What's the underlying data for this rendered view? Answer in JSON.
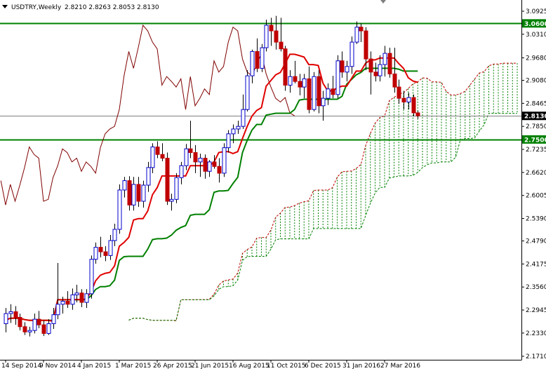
{
  "header": {
    "symbol": "USDTRY,Weekly",
    "ohlc": "2.8210 2.8263 2.8053 2.8130"
  },
  "colors": {
    "bull_candle": "#0000cc",
    "bear_candle": "#c00000",
    "tenkan": "#e00000",
    "kijun": "#008000",
    "chikou": "#800000",
    "span_a": "#c00000",
    "span_b": "#008000",
    "kumo_fill": "#008000",
    "level_line": "#008000",
    "current_price_line": "#808080",
    "badge_bg": "#008000",
    "current_badge_bg": "#000000"
  },
  "chart_data": {
    "type": "candlestick",
    "title": "USDTRY,Weekly",
    "indicators": [
      "Ichimoku Kinko Hyo"
    ],
    "ylim": [
      2.171,
      3.0925
    ],
    "y_ticks": [
      "3.0925",
      "3.0600",
      "3.0310",
      "2.9680",
      "2.9080",
      "2.8465",
      "2.8130",
      "2.7850",
      "2.7235",
      "2.6620",
      "2.6005",
      "2.5390",
      "2.4790",
      "2.4175",
      "2.3560",
      "2.2945",
      "2.2330",
      "2.1710"
    ],
    "x_ticks": [
      {
        "i": 0,
        "label": "14 Sep 2014"
      },
      {
        "i": 8,
        "label": "9 Nov 2014"
      },
      {
        "i": 16,
        "label": "4 Jan 2015"
      },
      {
        "i": 24,
        "label": "1 Mar 2015"
      },
      {
        "i": 32,
        "label": "26 Apr 2015"
      },
      {
        "i": 40,
        "label": "21 Jun 2015"
      },
      {
        "i": 48,
        "label": "16 Aug 2015"
      },
      {
        "i": 56,
        "label": "11 Oct 2015"
      },
      {
        "i": 64,
        "label": "6 Dec 2015"
      },
      {
        "i": 72,
        "label": "31 Jan 2016"
      },
      {
        "i": 80,
        "label": "27 Mar 2016"
      }
    ],
    "horizontal_levels": [
      {
        "value": 3.06,
        "label": "3.0600"
      },
      {
        "value": 2.75,
        "label": "2.7500"
      }
    ],
    "current_price": {
      "value": 2.813,
      "label": "2.8130"
    },
    "candles": [
      {
        "o": 2.258,
        "h": 2.3,
        "l": 2.235,
        "c": 2.285
      },
      {
        "o": 2.285,
        "h": 2.31,
        "l": 2.26,
        "c": 2.29
      },
      {
        "o": 2.29,
        "h": 2.305,
        "l": 2.255,
        "c": 2.275
      },
      {
        "o": 2.275,
        "h": 2.285,
        "l": 2.24,
        "c": 2.25
      },
      {
        "o": 2.25,
        "h": 2.262,
        "l": 2.228,
        "c": 2.236
      },
      {
        "o": 2.236,
        "h": 2.25,
        "l": 2.224,
        "c": 2.24
      },
      {
        "o": 2.24,
        "h": 2.285,
        "l": 2.232,
        "c": 2.27
      },
      {
        "o": 2.27,
        "h": 2.292,
        "l": 2.246,
        "c": 2.255
      },
      {
        "o": 2.255,
        "h": 2.266,
        "l": 2.225,
        "c": 2.232
      },
      {
        "o": 2.232,
        "h": 2.27,
        "l": 2.228,
        "c": 2.258
      },
      {
        "o": 2.258,
        "h": 2.3,
        "l": 2.244,
        "c": 2.282
      },
      {
        "o": 2.282,
        "h": 2.42,
        "l": 2.27,
        "c": 2.31
      },
      {
        "o": 2.31,
        "h": 2.33,
        "l": 2.285,
        "c": 2.318
      },
      {
        "o": 2.318,
        "h": 2.345,
        "l": 2.3,
        "c": 2.31
      },
      {
        "o": 2.31,
        "h": 2.352,
        "l": 2.295,
        "c": 2.335
      },
      {
        "o": 2.335,
        "h": 2.362,
        "l": 2.315,
        "c": 2.34
      },
      {
        "o": 2.34,
        "h": 2.35,
        "l": 2.302,
        "c": 2.315
      },
      {
        "o": 2.315,
        "h": 2.35,
        "l": 2.3,
        "c": 2.338
      },
      {
        "o": 2.338,
        "h": 2.44,
        "l": 2.325,
        "c": 2.43
      },
      {
        "o": 2.43,
        "h": 2.475,
        "l": 2.418,
        "c": 2.462
      },
      {
        "o": 2.462,
        "h": 2.49,
        "l": 2.435,
        "c": 2.45
      },
      {
        "o": 2.45,
        "h": 2.465,
        "l": 2.425,
        "c": 2.44
      },
      {
        "o": 2.44,
        "h": 2.495,
        "l": 2.428,
        "c": 2.48
      },
      {
        "o": 2.48,
        "h": 2.525,
        "l": 2.465,
        "c": 2.51
      },
      {
        "o": 2.51,
        "h": 2.63,
        "l": 2.498,
        "c": 2.615
      },
      {
        "o": 2.615,
        "h": 2.65,
        "l": 2.595,
        "c": 2.64
      },
      {
        "o": 2.64,
        "h": 2.652,
        "l": 2.56,
        "c": 2.575
      },
      {
        "o": 2.575,
        "h": 2.65,
        "l": 2.56,
        "c": 2.63
      },
      {
        "o": 2.63,
        "h": 2.65,
        "l": 2.57,
        "c": 2.585
      },
      {
        "o": 2.585,
        "h": 2.64,
        "l": 2.568,
        "c": 2.628
      },
      {
        "o": 2.628,
        "h": 2.69,
        "l": 2.61,
        "c": 2.675
      },
      {
        "o": 2.675,
        "h": 2.74,
        "l": 2.66,
        "c": 2.73
      },
      {
        "o": 2.73,
        "h": 2.745,
        "l": 2.7,
        "c": 2.71
      },
      {
        "o": 2.71,
        "h": 2.74,
        "l": 2.692,
        "c": 2.7
      },
      {
        "o": 2.7,
        "h": 2.715,
        "l": 2.575,
        "c": 2.585
      },
      {
        "o": 2.585,
        "h": 2.605,
        "l": 2.56,
        "c": 2.59
      },
      {
        "o": 2.59,
        "h": 2.66,
        "l": 2.58,
        "c": 2.648
      },
      {
        "o": 2.648,
        "h": 2.69,
        "l": 2.63,
        "c": 2.68
      },
      {
        "o": 2.68,
        "h": 2.738,
        "l": 2.668,
        "c": 2.725
      },
      {
        "o": 2.725,
        "h": 2.8,
        "l": 2.7,
        "c": 2.715
      },
      {
        "o": 2.715,
        "h": 2.735,
        "l": 2.66,
        "c": 2.69
      },
      {
        "o": 2.69,
        "h": 2.712,
        "l": 2.65,
        "c": 2.7
      },
      {
        "o": 2.7,
        "h": 2.71,
        "l": 2.645,
        "c": 2.665
      },
      {
        "o": 2.665,
        "h": 2.695,
        "l": 2.65,
        "c": 2.69
      },
      {
        "o": 2.69,
        "h": 2.708,
        "l": 2.672,
        "c": 2.678
      },
      {
        "o": 2.678,
        "h": 2.7,
        "l": 2.635,
        "c": 2.66
      },
      {
        "o": 2.66,
        "h": 2.74,
        "l": 2.65,
        "c": 2.728
      },
      {
        "o": 2.728,
        "h": 2.775,
        "l": 2.715,
        "c": 2.765
      },
      {
        "o": 2.765,
        "h": 2.79,
        "l": 2.74,
        "c": 2.778
      },
      {
        "o": 2.778,
        "h": 2.8,
        "l": 2.765,
        "c": 2.785
      },
      {
        "o": 2.785,
        "h": 2.87,
        "l": 2.778,
        "c": 2.83
      },
      {
        "o": 2.83,
        "h": 2.935,
        "l": 2.825,
        "c": 2.92
      },
      {
        "o": 2.92,
        "h": 2.99,
        "l": 2.9,
        "c": 2.985
      },
      {
        "o": 2.985,
        "h": 3.02,
        "l": 2.93,
        "c": 2.94
      },
      {
        "o": 2.94,
        "h": 3.005,
        "l": 2.93,
        "c": 2.995
      },
      {
        "o": 2.995,
        "h": 3.07,
        "l": 2.985,
        "c": 3.055
      },
      {
        "o": 3.055,
        "h": 3.075,
        "l": 3.0,
        "c": 3.04
      },
      {
        "o": 3.04,
        "h": 3.08,
        "l": 2.99,
        "c": 3.01
      },
      {
        "o": 3.01,
        "h": 3.075,
        "l": 2.985,
        "c": 2.992
      },
      {
        "o": 2.992,
        "h": 3.0,
        "l": 2.88,
        "c": 2.895
      },
      {
        "o": 2.895,
        "h": 2.935,
        "l": 2.875,
        "c": 2.918
      },
      {
        "o": 2.918,
        "h": 2.96,
        "l": 2.9,
        "c": 2.905
      },
      {
        "o": 2.905,
        "h": 2.925,
        "l": 2.868,
        "c": 2.89
      },
      {
        "o": 2.89,
        "h": 2.925,
        "l": 2.86,
        "c": 2.912
      },
      {
        "o": 2.912,
        "h": 2.945,
        "l": 2.82,
        "c": 2.83
      },
      {
        "o": 2.83,
        "h": 2.93,
        "l": 2.825,
        "c": 2.918
      },
      {
        "o": 2.918,
        "h": 2.935,
        "l": 2.82,
        "c": 2.84
      },
      {
        "o": 2.84,
        "h": 2.88,
        "l": 2.8,
        "c": 2.86
      },
      {
        "o": 2.86,
        "h": 2.9,
        "l": 2.842,
        "c": 2.885
      },
      {
        "o": 2.885,
        "h": 2.92,
        "l": 2.86,
        "c": 2.87
      },
      {
        "o": 2.87,
        "h": 2.975,
        "l": 2.86,
        "c": 2.96
      },
      {
        "o": 2.96,
        "h": 2.985,
        "l": 2.915,
        "c": 2.93
      },
      {
        "o": 2.93,
        "h": 2.96,
        "l": 2.905,
        "c": 2.945
      },
      {
        "o": 2.945,
        "h": 3.025,
        "l": 2.925,
        "c": 3.01
      },
      {
        "o": 3.01,
        "h": 3.065,
        "l": 3.005,
        "c": 3.05
      },
      {
        "o": 3.05,
        "h": 3.06,
        "l": 3.01,
        "c": 3.04
      },
      {
        "o": 3.04,
        "h": 3.05,
        "l": 2.935,
        "c": 2.965
      },
      {
        "o": 2.965,
        "h": 2.985,
        "l": 2.87,
        "c": 2.93
      },
      {
        "o": 2.93,
        "h": 2.955,
        "l": 2.905,
        "c": 2.92
      },
      {
        "o": 2.92,
        "h": 2.975,
        "l": 2.905,
        "c": 2.95
      },
      {
        "o": 2.95,
        "h": 3.0,
        "l": 2.918,
        "c": 2.98
      },
      {
        "o": 2.98,
        "h": 2.995,
        "l": 2.915,
        "c": 2.925
      },
      {
        "o": 2.925,
        "h": 2.995,
        "l": 2.875,
        "c": 2.89
      },
      {
        "o": 2.89,
        "h": 2.91,
        "l": 2.845,
        "c": 2.86
      },
      {
        "o": 2.86,
        "h": 2.88,
        "l": 2.83,
        "c": 2.85
      },
      {
        "o": 2.85,
        "h": 2.875,
        "l": 2.83,
        "c": 2.862
      },
      {
        "o": 2.862,
        "h": 2.87,
        "l": 2.812,
        "c": 2.821
      },
      {
        "o": 2.821,
        "h": 2.8263,
        "l": 2.8053,
        "c": 2.813
      }
    ]
  }
}
